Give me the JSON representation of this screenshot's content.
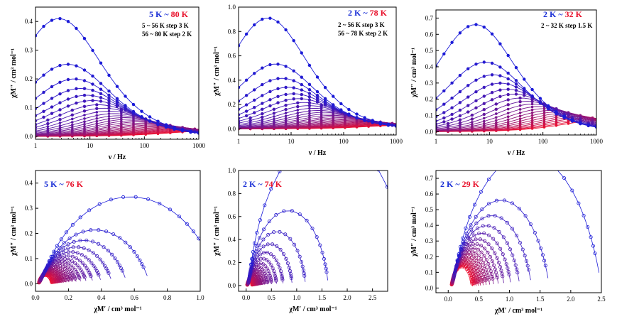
{
  "colors": {
    "start": "#1a1ad8",
    "end": "#ee1030",
    "axis": "#000000"
  },
  "chart_data": [
    {
      "id": "a",
      "type": "line",
      "panel": "top-left",
      "xscale": "log",
      "xlim": [
        1,
        1000
      ],
      "ylim": [
        -0.01,
        0.45
      ],
      "xticks": [
        1,
        10,
        100,
        1000
      ],
      "xtick_labels": [
        "1",
        "10",
        "100",
        "1000"
      ],
      "yticks": [
        0.0,
        0.1,
        0.2,
        0.3,
        0.4
      ],
      "ytick_labels": [
        "0.0",
        "0.1",
        "0.2",
        "0.3",
        "0.4"
      ],
      "xlabel": "ν / Hz",
      "ylabel": "χM″ / cm³ mol⁻¹",
      "title_start": "5 K",
      "title_sep": " ~ ",
      "title_end": "80 K",
      "notes": [
        "5 ~ 56 K step 3 K",
        "56 ~ 80 K step 2 K"
      ],
      "n_curves": 30,
      "max_first": 0.41,
      "max_last": 0.018,
      "peak_nu_first": 2.7,
      "peak_nu_last": 1500,
      "alpha": 0.2,
      "curves_shown": "χM″ vs ν at each temperature from 5 K (blue, peak ≈ 0.41 near 2.7 Hz) to 80 K (red); peaks shift to higher frequency and decrease"
    },
    {
      "id": "b",
      "type": "line",
      "panel": "top-middle",
      "xscale": "log",
      "xlim": [
        1,
        1000
      ],
      "ylim": [
        -0.05,
        1.0
      ],
      "xticks": [
        1,
        10,
        100,
        1000
      ],
      "xtick_labels": [
        "1",
        "10",
        "100",
        "1000"
      ],
      "yticks": [
        0.0,
        0.2,
        0.4,
        0.6,
        0.8,
        1.0
      ],
      "ytick_labels": [
        "0.0",
        "0.2",
        "0.4",
        "0.6",
        "0.8",
        "1.0"
      ],
      "xlabel": "ν / Hz",
      "ylabel": "χM″ / cm³ mol⁻¹",
      "title_start": "2 K",
      "title_sep": " ~ ",
      "title_end": "78 K",
      "notes": [
        "2 ~ 56 K step 3 K",
        "56 ~ 78 K step 2 K"
      ],
      "n_curves": 30,
      "max_first": 0.91,
      "max_last": 0.03,
      "peak_nu_first": 3.6,
      "peak_nu_last": 1500,
      "alpha": 0.15,
      "curves_shown": "χM″ vs ν from 2 K (peak ≈ 0.91 near 3.6 Hz) to 78 K"
    },
    {
      "id": "c",
      "type": "line",
      "panel": "top-right",
      "xscale": "log",
      "xlim": [
        1,
        1000
      ],
      "ylim": [
        -0.02,
        0.75
      ],
      "xticks": [
        1,
        10,
        100,
        1000
      ],
      "xtick_labels": [
        "1",
        "10",
        "100",
        "1000"
      ],
      "yticks": [
        0.0,
        0.1,
        0.2,
        0.3,
        0.4,
        0.5,
        0.6,
        0.7
      ],
      "ytick_labels": [
        "0.0",
        "0.1",
        "0.2",
        "0.3",
        "0.4",
        "0.5",
        "0.6",
        "0.7"
      ],
      "xlabel": "ν / Hz",
      "ylabel": "χM″ / cm³ mol⁻¹",
      "title_start": "2 K",
      "title_sep": " ~ ",
      "title_end": "32 K",
      "notes": [
        "2 ~ 32 K step 1.5 K"
      ],
      "n_curves": 21,
      "max_first": 0.66,
      "max_last": 0.07,
      "peak_nu_first": 5.5,
      "peak_nu_last": 1200,
      "alpha": 0.15,
      "curves_shown": "χM″ vs ν from 2 K (peak ≈ 0.66 near 5.5 Hz) to 32 K"
    },
    {
      "id": "d",
      "type": "scatter",
      "panel": "bottom-left",
      "xlim": [
        0.0,
        1.0
      ],
      "ylim": [
        -0.03,
        0.45
      ],
      "xticks": [
        0.0,
        0.2,
        0.4,
        0.6,
        0.8,
        1.0
      ],
      "xtick_labels": [
        "0.0",
        "0.2",
        "0.4",
        "0.6",
        "0.8",
        "1.0"
      ],
      "yticks": [
        0.0,
        0.1,
        0.2,
        0.3,
        0.4
      ],
      "ytick_labels": [
        "0.0",
        "0.1",
        "0.2",
        "0.3",
        "0.4"
      ],
      "xlabel": "χM′ / cm³ mol⁻¹",
      "ylabel": "χM″ / cm³ mol⁻¹",
      "title_start": "5 K",
      "title_sep": " ~ ",
      "title_end": "76 K",
      "notes": [],
      "n_curves": 20,
      "arcs_first": {
        "chi_s": 0.03,
        "chi_t": 1.12,
        "alpha": 0.28
      },
      "arcs_last": {
        "chi_s": 0.02,
        "chi_t": 0.1,
        "alpha": 0.1
      },
      "curves_shown": "Cole-Cole plots (χM″ vs χM′) with fitted arcs; largest arc peaks ≈ 0.41 near χM′ ≈ 0.8"
    },
    {
      "id": "e",
      "type": "scatter",
      "panel": "bottom-middle",
      "xlim": [
        -0.15,
        2.8
      ],
      "ylim": [
        -0.05,
        1.0
      ],
      "xticks": [
        0.0,
        0.5,
        1.0,
        1.5,
        2.0,
        2.5
      ],
      "xtick_labels": [
        "0.0",
        "0.5",
        "1.0",
        "1.5",
        "2.0",
        "2.5"
      ],
      "yticks": [
        0.0,
        0.2,
        0.4,
        0.6,
        0.8,
        1.0
      ],
      "ytick_labels": [
        "0.0",
        "0.2",
        "0.4",
        "0.6",
        "0.8",
        "1.0"
      ],
      "xlabel": "χM′ / cm³ mol⁻¹",
      "ylabel": "χM″ / cm³ mol⁻¹",
      "title_start": "2 K",
      "title_sep": " ~ ",
      "title_end": "74 K",
      "notes": [],
      "n_curves": 18,
      "arcs_first": {
        "chi_s": 0.05,
        "chi_t": 3.25,
        "alpha": 0.12
      },
      "arcs_last": {
        "chi_s": 0.02,
        "chi_t": 0.12,
        "alpha": 0.1
      },
      "curves_shown": "Cole-Cole plots; largest arc peaks ≈ 0.91 near χM′ ≈ 1.65"
    },
    {
      "id": "f",
      "type": "scatter",
      "panel": "bottom-right",
      "xlim": [
        -0.2,
        2.5
      ],
      "ylim": [
        -0.03,
        0.75
      ],
      "xticks": [
        0.0,
        0.5,
        1.0,
        1.5,
        2.0,
        2.5
      ],
      "xtick_labels": [
        "0.0",
        "0.5",
        "1.0",
        "1.5",
        "2.0",
        "2.5"
      ],
      "yticks": [
        0.0,
        0.1,
        0.2,
        0.3,
        0.4,
        0.5,
        0.6,
        0.7
      ],
      "ytick_labels": [
        "0.0",
        "0.1",
        "0.2",
        "0.3",
        "0.4",
        "0.5",
        "0.6",
        "0.7"
      ],
      "xlabel": "χM′ / cm³ mol⁻¹",
      "ylabel": "χM″ / cm³ mol⁻¹",
      "title_start": "2 K",
      "title_sep": " ~ ",
      "title_end": "29 K",
      "notes": [],
      "n_curves": 16,
      "arcs_first": {
        "chi_s": 0.07,
        "chi_t": 2.5,
        "alpha": 0.22
      },
      "arcs_last": {
        "chi_s": 0.05,
        "chi_t": 0.4,
        "alpha": 0.15
      },
      "curves_shown": "Cole-Cole plots; largest arc peaks ≈ 0.66 near χM′ ≈ 1.35"
    }
  ]
}
